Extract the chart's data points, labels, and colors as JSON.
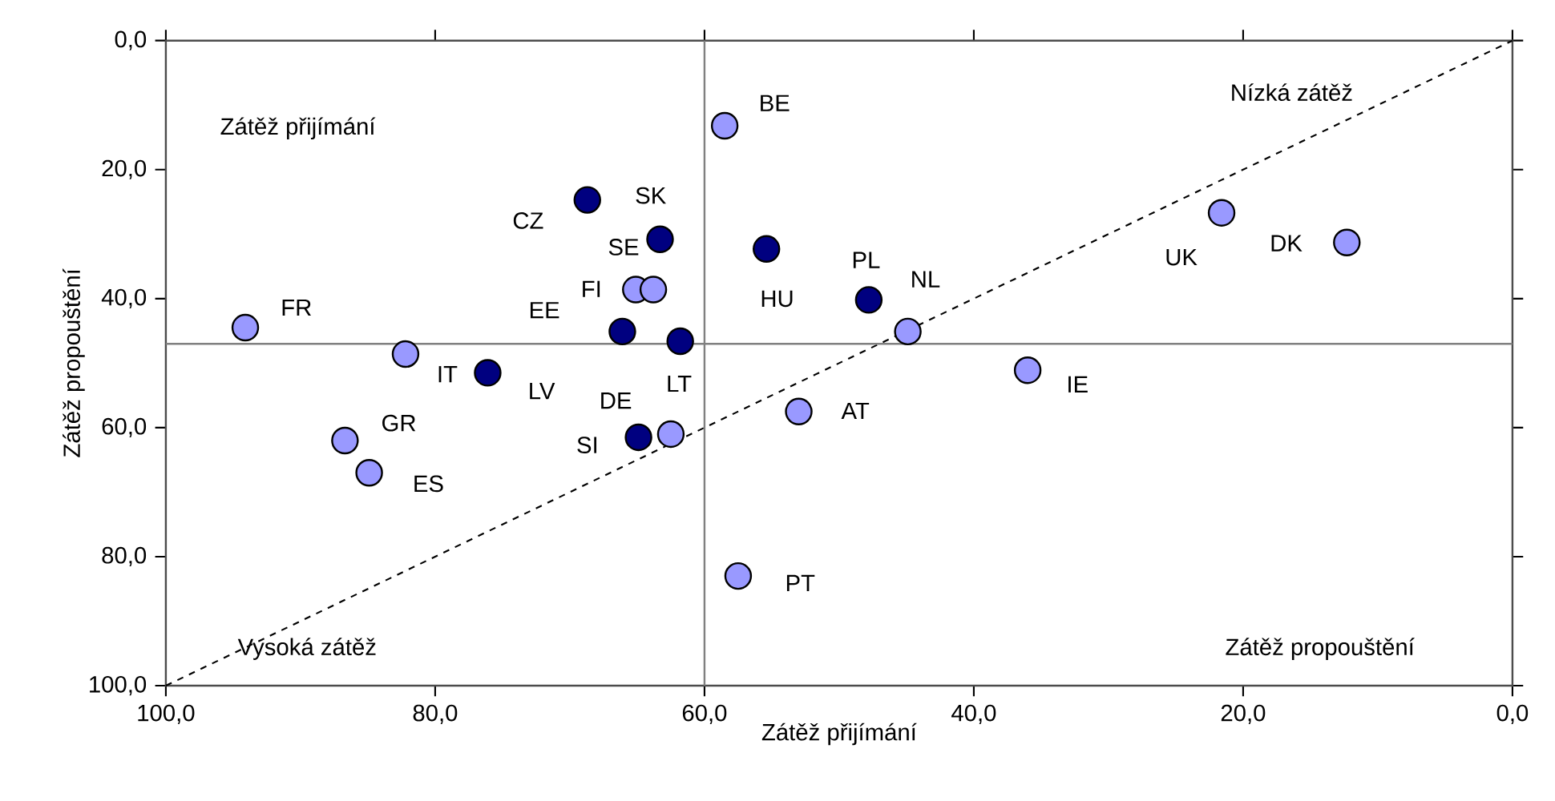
{
  "chart_data": {
    "type": "scatter",
    "xlabel": "Zátěž přijímání",
    "ylabel": "Zátěž propouštění",
    "xlim": [
      100,
      0
    ],
    "ylim": [
      100,
      0
    ],
    "xticks": [
      {
        "value": 100,
        "label": "100,0"
      },
      {
        "value": 80,
        "label": "80,0"
      },
      {
        "value": 60,
        "label": "60,0"
      },
      {
        "value": 40,
        "label": "40,0"
      },
      {
        "value": 20,
        "label": "20,0"
      },
      {
        "value": 0,
        "label": "0,0"
      }
    ],
    "yticks": [
      {
        "value": 100,
        "label": "100,0"
      },
      {
        "value": 80,
        "label": "80,0"
      },
      {
        "value": 60,
        "label": "60,0"
      },
      {
        "value": 40,
        "label": "40,0"
      },
      {
        "value": 20,
        "label": "20,0"
      },
      {
        "value": 0,
        "label": "0,0"
      }
    ],
    "grid": false,
    "marker": "circle",
    "series": [
      {
        "color": "#9999ff",
        "x": [
          58.5,
          21.6,
          12.3,
          44.9,
          36.0,
          53.0,
          57.5,
          94.1,
          82.2,
          86.7,
          84.9,
          65.1,
          63.8,
          62.5
        ],
        "values": [
          13.2,
          26.7,
          31.3,
          45.1,
          51.1,
          57.5,
          83.0,
          44.5,
          48.6,
          62.0,
          67.0,
          38.6,
          38.6,
          61.0
        ]
      },
      {
        "color": "#000080",
        "x": [
          68.7,
          63.3,
          55.4,
          47.8,
          66.1,
          61.8,
          76.1,
          64.9
        ],
        "values": [
          24.7,
          30.8,
          32.3,
          40.2,
          45.1,
          46.6,
          51.5,
          61.5
        ]
      },
      {
        "type": "line",
        "color": "#000000",
        "line_style": "dashed",
        "marker": "none",
        "x": [
          100,
          0
        ],
        "values": [
          100,
          0
        ]
      }
    ],
    "ref_lines": [
      {
        "axis": "x",
        "value": 60,
        "color": "#808080"
      },
      {
        "axis": "y",
        "value": 47,
        "color": "#808080"
      }
    ],
    "annotations": [
      {
        "text": "BE",
        "x": 58.5,
        "y": 13.2
      },
      {
        "text": "CZ",
        "x": 68.7,
        "y": 24.7
      },
      {
        "text": "SK",
        "x": 63.3,
        "y": 30.8
      },
      {
        "text": "SE",
        "x": 63.8,
        "y": 38.6
      },
      {
        "text": "FI",
        "x": 65.1,
        "y": 38.6
      },
      {
        "text": "EE",
        "x": 66.1,
        "y": 45.1
      },
      {
        "text": "FR",
        "x": 94.1,
        "y": 44.5
      },
      {
        "text": "IT",
        "x": 82.2,
        "y": 48.6
      },
      {
        "text": "LV",
        "x": 76.1,
        "y": 51.5
      },
      {
        "text": "DE",
        "x": 62.5,
        "y": 61.0
      },
      {
        "text": "LT",
        "x": 61.8,
        "y": 46.6
      },
      {
        "text": "SI",
        "x": 64.9,
        "y": 61.5
      },
      {
        "text": "GR",
        "x": 86.7,
        "y": 62.0
      },
      {
        "text": "ES",
        "x": 84.9,
        "y": 67.0
      },
      {
        "text": "HU",
        "x": 55.4,
        "y": 32.3
      },
      {
        "text": "PL",
        "x": 47.8,
        "y": 40.2
      },
      {
        "text": "NL",
        "x": 44.9,
        "y": 45.1
      },
      {
        "text": "UK",
        "x": 21.6,
        "y": 26.7
      },
      {
        "text": "DK",
        "x": 12.3,
        "y": 31.3
      },
      {
        "text": "IE",
        "x": 36.0,
        "y": 51.1
      },
      {
        "text": "AT",
        "x": 53.0,
        "y": 57.5
      },
      {
        "text": "PT",
        "x": 57.5,
        "y": 83.0
      },
      "Zátěž přijímání",
      "Nízká zátěž",
      "Vysoká zátěž",
      "Zátěž propouštění"
    ]
  }
}
